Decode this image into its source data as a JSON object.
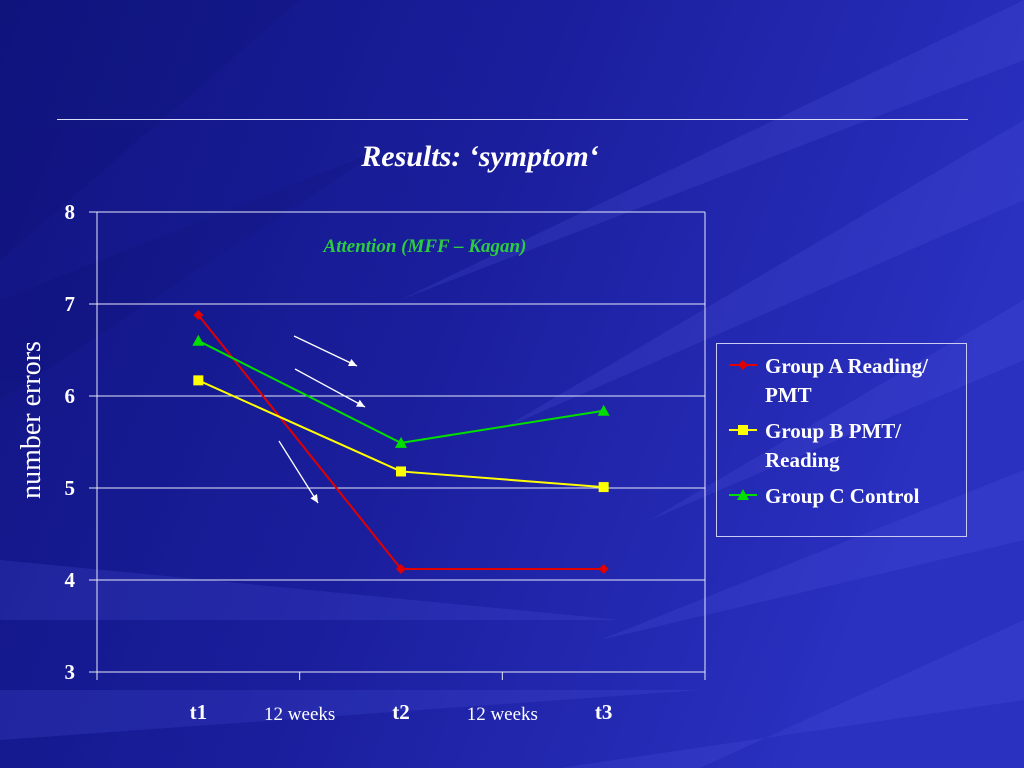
{
  "slide": {
    "title": "Results: ‘symptom‘"
  },
  "chart_data": {
    "type": "line",
    "annotation": "Attention (MFF – Kagan)",
    "ylabel": "number errors",
    "ylim": [
      3,
      8
    ],
    "yticks": [
      3,
      4,
      5,
      6,
      7,
      8
    ],
    "categories": [
      "t1",
      "t2",
      "t3"
    ],
    "interval_labels": [
      "12 weeks",
      "12 weeks"
    ],
    "grid": true,
    "legend_position": "right",
    "series": [
      {
        "name": "Group A Reading/ PMT",
        "color": "#e00000",
        "marker": "diamond",
        "values": [
          6.88,
          4.12,
          4.12
        ]
      },
      {
        "name": "Group B PMT/ Reading",
        "color": "#ffff00",
        "marker": "square",
        "values": [
          6.17,
          5.18,
          5.01
        ]
      },
      {
        "name": "Group C Control",
        "color": "#00dd00",
        "marker": "triangle",
        "values": [
          6.6,
          5.49,
          5.84
        ]
      }
    ],
    "arrows": [
      "down",
      "down",
      "down"
    ]
  },
  "legend": {
    "items": [
      {
        "label": "Group A Reading/ PMT",
        "color": "#e00000",
        "marker": "diamond"
      },
      {
        "label": "Group B PMT/ Reading",
        "color": "#ffff00",
        "marker": "square"
      },
      {
        "label": "Group C Control",
        "color": "#00dd00",
        "marker": "triangle"
      }
    ]
  }
}
